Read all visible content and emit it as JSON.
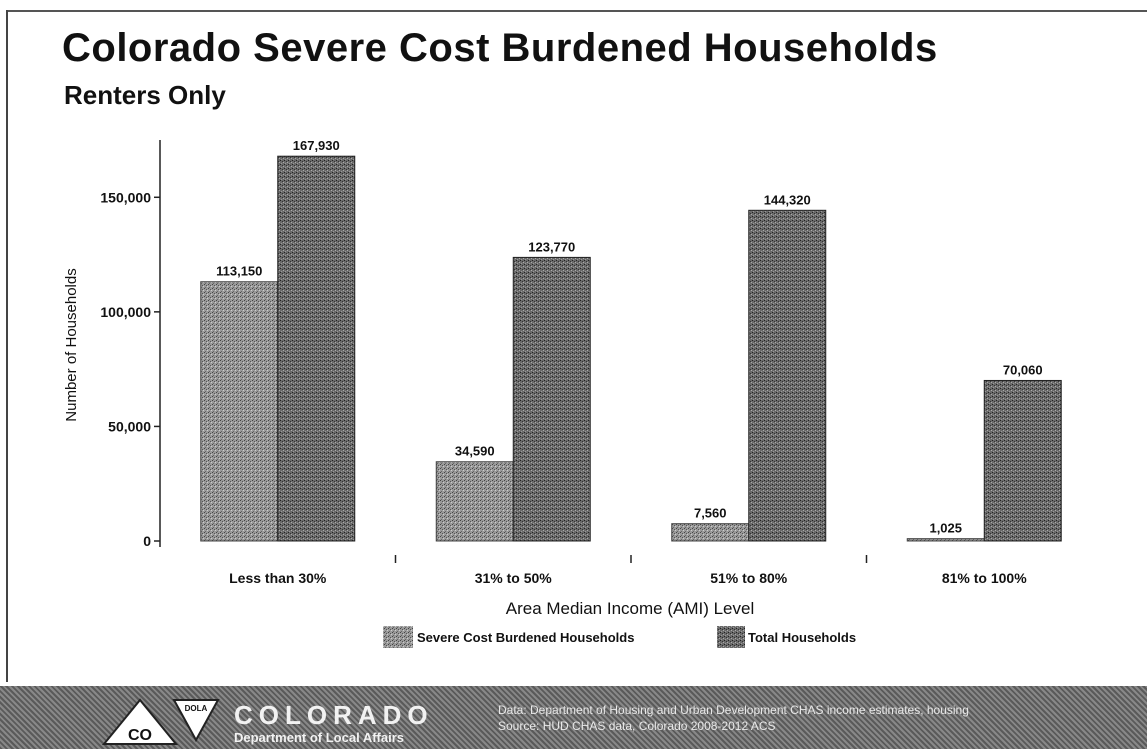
{
  "chart_data": {
    "type": "bar",
    "title": "Colorado Severe Cost Burdened Households",
    "subtitle": "Renters Only",
    "categories": [
      "Less than 30%",
      "31% to 50%",
      "51% to 80%",
      "81% to 100%"
    ],
    "series": [
      {
        "name": "Severe Cost Burdened Households",
        "values": [
          113150,
          34590,
          7560,
          1025
        ],
        "labels": [
          "113,150",
          "34,590",
          "7,560",
          "1,025"
        ]
      },
      {
        "name": "Total Households",
        "values": [
          167930,
          123770,
          144320,
          70060
        ],
        "labels": [
          "167,930",
          "123,770",
          "144,320",
          "70,060"
        ]
      }
    ],
    "yticks": [
      "0",
      "50,000",
      "100,000",
      "150,000"
    ],
    "ytick_values": [
      0,
      50000,
      100000,
      150000
    ],
    "xlabel": "Area Median Income (AMI) Level",
    "ylabel": "Number of Households",
    "ylim": [
      0,
      175000
    ],
    "legend_position": "bottom-center",
    "grid": false,
    "colors": {
      "severe": "#8c8c8c",
      "total": "#555555"
    }
  },
  "footer": {
    "logo_badge": "DOLA",
    "logo_initials": "CO",
    "org_name": "COLORADO",
    "dept_name": "Department of Local Affairs",
    "note_line1": "Data: Department of Housing and Urban Development CHAS income estimates, housing",
    "note_line2": "Source: HUD CHAS data, Colorado 2008-2012 ACS"
  }
}
